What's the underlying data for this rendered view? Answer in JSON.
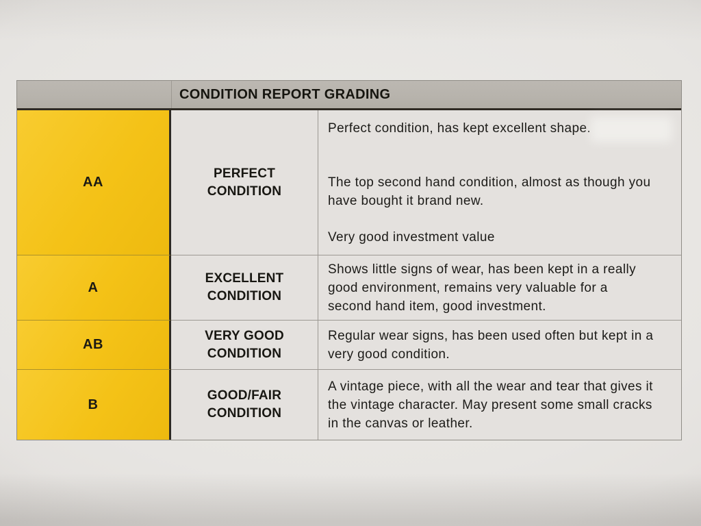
{
  "document": {
    "kind": "photographed printed table",
    "header": {
      "title": "CONDITION REPORT GRADING"
    },
    "table": {
      "rows": [
        {
          "grade": "AA",
          "condition": "PERFECT CONDITION",
          "descriptions": [
            "Perfect condition, has kept excellent shape.",
            "The top second hand condition, almost as though you have bought it brand new.",
            "Very good investment value"
          ]
        },
        {
          "grade": "A",
          "condition": "EXCELLENT CONDITION",
          "descriptions": [
            "Shows little signs of wear, has been kept in a really good environment, remains very valuable for a second hand item, good investment."
          ]
        },
        {
          "grade": "AB",
          "condition": "VERY GOOD CONDITION",
          "descriptions": [
            "Regular wear signs, has been used often but kept in a very good condition."
          ]
        },
        {
          "grade": "B",
          "condition": "GOOD/FAIR CONDITION",
          "descriptions": [
            "A vintage piece, with all the wear and tear that gives it the vintage character. May present some small cracks in the canvas or leather."
          ]
        }
      ]
    },
    "colors": {
      "grade_column_yellow": "#f4c217",
      "header_bar_gray": "#b7b3ac",
      "cell_background": "#e4e1de",
      "paper_background": "#e7e5e2",
      "dark_rule": "#2e2a24",
      "light_rule": "#9c9893",
      "text": "#1c1b18"
    }
  }
}
